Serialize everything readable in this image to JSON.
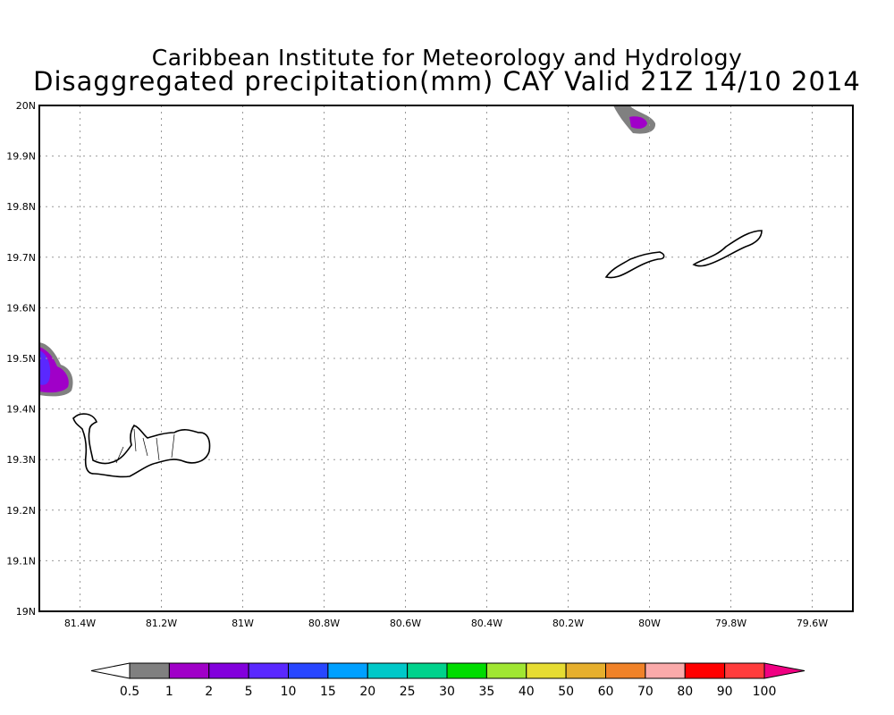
{
  "title": "Caribbean Institute for Meteorology and Hydrology",
  "subtitle": "Disaggregated precipitation(mm) CAY Valid 21Z 14/10 2014",
  "map": {
    "lon_range": [
      -81.5,
      -79.5
    ],
    "lat_range": [
      19.0,
      20.0
    ],
    "lon_ticks": [
      {
        "value": -81.4,
        "label": "81.4W"
      },
      {
        "value": -81.2,
        "label": "81.2W"
      },
      {
        "value": -81.0,
        "label": "81W"
      },
      {
        "value": -80.8,
        "label": "80.8W"
      },
      {
        "value": -80.6,
        "label": "80.6W"
      },
      {
        "value": -80.4,
        "label": "80.4W"
      },
      {
        "value": -80.2,
        "label": "80.2W"
      },
      {
        "value": -80.0,
        "label": "80W"
      },
      {
        "value": -79.8,
        "label": "79.8W"
      },
      {
        "value": -79.6,
        "label": "79.6W"
      }
    ],
    "lat_ticks": [
      {
        "value": 19.0,
        "label": "19N"
      },
      {
        "value": 19.1,
        "label": "19.1N"
      },
      {
        "value": 19.2,
        "label": "19.2N"
      },
      {
        "value": 19.3,
        "label": "19.3N"
      },
      {
        "value": 19.4,
        "label": "19.4N"
      },
      {
        "value": 19.5,
        "label": "19.5N"
      },
      {
        "value": 19.6,
        "label": "19.6N"
      },
      {
        "value": 19.7,
        "label": "19.7N"
      },
      {
        "value": 19.8,
        "label": "19.8N"
      },
      {
        "value": 19.9,
        "label": "19.9N"
      },
      {
        "value": 20.0,
        "label": "20N"
      }
    ]
  },
  "colorbar": {
    "labels": [
      "0.5",
      "1",
      "2",
      "5",
      "10",
      "15",
      "20",
      "25",
      "30",
      "35",
      "40",
      "50",
      "60",
      "70",
      "80",
      "90",
      "100"
    ],
    "colors": [
      "#808080",
      "#a000c8",
      "#8200dc",
      "#5a28ff",
      "#2846ff",
      "#00a0ff",
      "#00c8c8",
      "#00d28c",
      "#00dc00",
      "#a0e632",
      "#e6dc32",
      "#e6af2d",
      "#f08228",
      "#faaaaa",
      "#ff0000",
      "#ff3c3c"
    ],
    "under_color": "#ffffff",
    "over_color": "#f00082"
  }
}
